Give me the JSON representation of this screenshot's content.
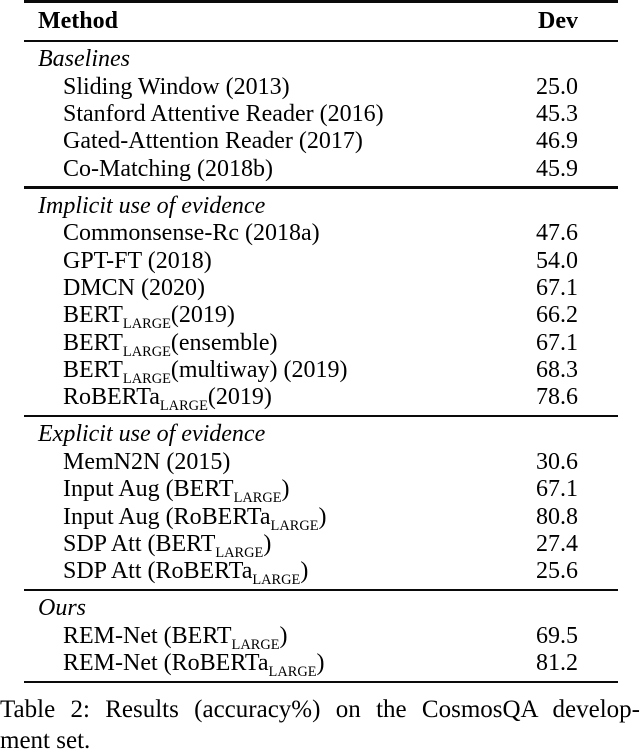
{
  "colors": {
    "text": "#000000",
    "background": "#ffffff",
    "rule": "#0a0a0a"
  },
  "table": {
    "columns": [
      "Method",
      "Dev"
    ],
    "sections": [
      {
        "header": "Baselines",
        "rows": [
          {
            "method": "Sliding Window (2013)",
            "dev": "25.0"
          },
          {
            "method": "Stanford Attentive Reader (2016)",
            "dev": "45.3"
          },
          {
            "method": "Gated-Attention Reader (2017)",
            "dev": "46.9"
          },
          {
            "method": "Co-Matching (2018b)",
            "dev": "45.9"
          }
        ]
      },
      {
        "header": "Implicit use of evidence",
        "rows": [
          {
            "method": "Commonsense-Rc (2018a)",
            "dev": "47.6"
          },
          {
            "method": "GPT-FT (2018)",
            "dev": "54.0"
          },
          {
            "method": "DMCN (2020)",
            "dev": "67.1"
          },
          {
            "method": "BERT_{LARGE}(2019)",
            "dev": "66.2"
          },
          {
            "method": "BERT_{LARGE}(ensemble)",
            "dev": "67.1"
          },
          {
            "method": "BERT_{LARGE}(multiway) (2019)",
            "dev": "68.3"
          },
          {
            "method": "RoBERTa_{LARGE}(2019)",
            "dev": "78.6"
          }
        ]
      },
      {
        "header": "Explicit use of evidence",
        "rows": [
          {
            "method": "MemN2N (2015)",
            "dev": "30.6"
          },
          {
            "method": "Input Aug (BERT_{LARGE})",
            "dev": "67.1"
          },
          {
            "method": "Input Aug (RoBERTa_{LARGE})",
            "dev": "80.8"
          },
          {
            "method": "SDP Att (BERT_{LARGE})",
            "dev": "27.4"
          },
          {
            "method": "SDP Att (RoBERTa_{LARGE})",
            "dev": "25.6"
          }
        ]
      },
      {
        "header": "Ours",
        "rows": [
          {
            "method": "REM-Net (BERT_{LARGE})",
            "dev": "69.5"
          },
          {
            "method": "REM-Net (RoBERTa_{LARGE})",
            "dev": "81.2"
          }
        ]
      }
    ]
  },
  "caption": {
    "line1": "Table 2: Results (accuracy%) on the CosmosQA develop-",
    "line2": "ment set."
  }
}
